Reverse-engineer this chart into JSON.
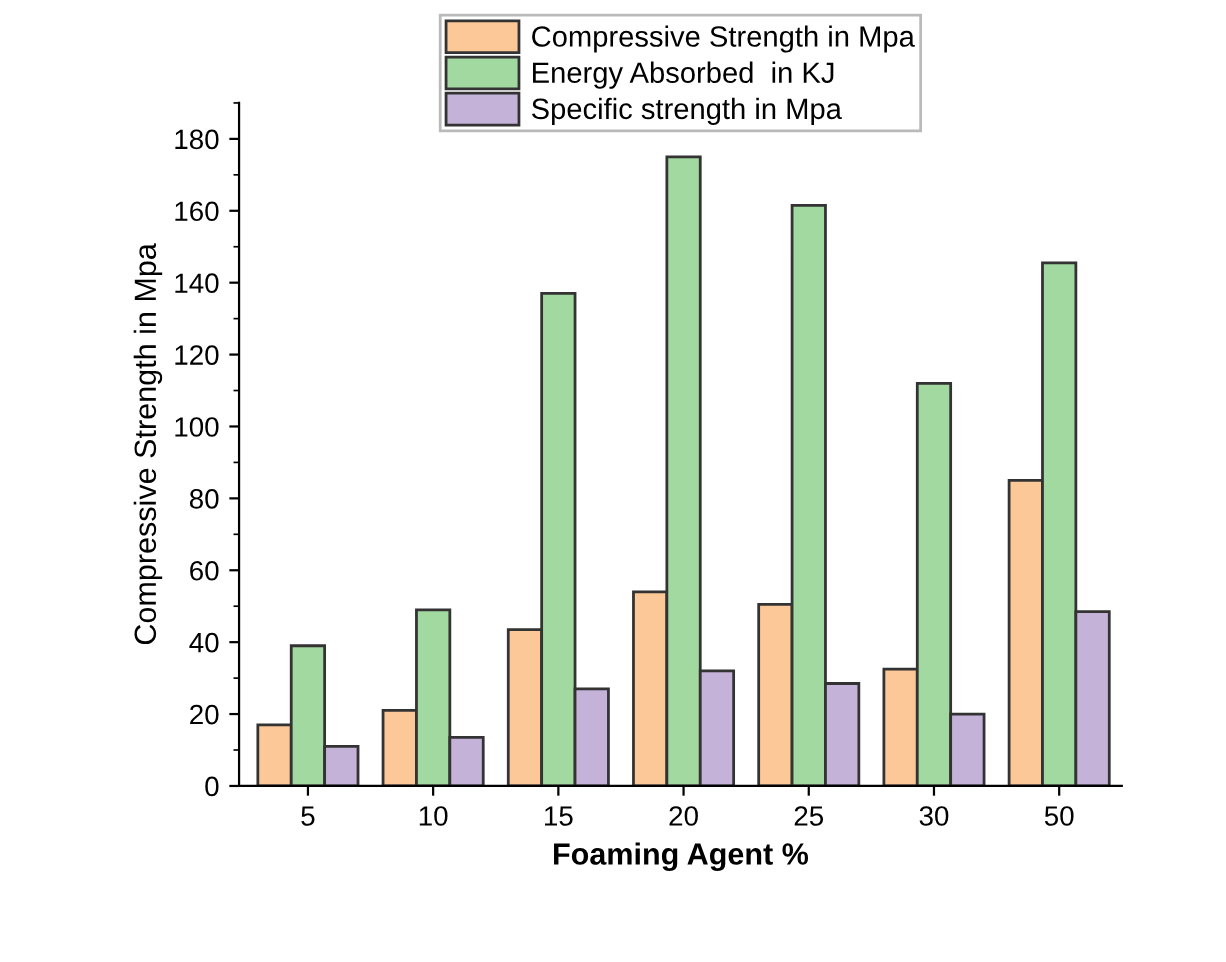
{
  "chart_data": {
    "type": "bar",
    "xlabel": "Foaming Agent %",
    "ylabel": "Compressive Strength in Mpa",
    "categories": [
      "5",
      "10",
      "15",
      "20",
      "25",
      "30",
      "50"
    ],
    "series": [
      {
        "name": "Compressive Strength in Mpa",
        "color": "#fdc898",
        "values": [
          17,
          21,
          43.5,
          54,
          50.5,
          32.5,
          85
        ]
      },
      {
        "name": "Energy Absorbed  in KJ",
        "color": "#a2d9a0",
        "values": [
          39,
          49,
          137,
          175,
          161.5,
          112,
          145.5
        ]
      },
      {
        "name": "Specific strength in Mpa",
        "color": "#c4b2d8",
        "values": [
          11,
          13.5,
          27,
          32,
          28.5,
          20,
          48.5
        ]
      }
    ],
    "ylim": [
      0,
      190
    ],
    "yticks": [
      0,
      20,
      40,
      60,
      80,
      100,
      120,
      140,
      160,
      180
    ],
    "grid": false,
    "legend": "top"
  }
}
